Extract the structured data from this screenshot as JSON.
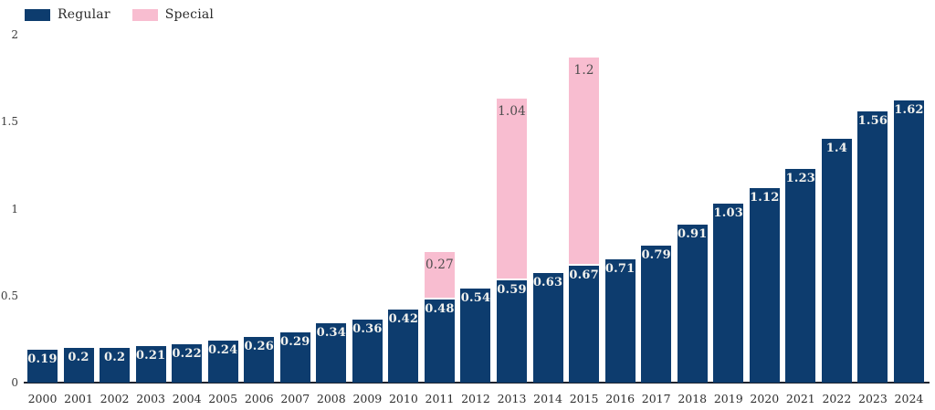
{
  "chart_data": {
    "type": "bar",
    "stacked": true,
    "title": "",
    "xlabel": "",
    "ylabel": "",
    "categories": [
      "2000",
      "2001",
      "2002",
      "2003",
      "2004",
      "2005",
      "2006",
      "2007",
      "2008",
      "2009",
      "2010",
      "2011",
      "2012",
      "2013",
      "2014",
      "2015",
      "2016",
      "2017",
      "2018",
      "2019",
      "2020",
      "2021",
      "2022",
      "2023",
      "2024"
    ],
    "series": [
      {
        "name": "Regular",
        "color": "#0d3c6e",
        "label_color": "#f2f2ee",
        "values": [
          0.19,
          0.2,
          0.2,
          0.21,
          0.22,
          0.24,
          0.26,
          0.29,
          0.34,
          0.36,
          0.42,
          0.48,
          0.54,
          0.59,
          0.63,
          0.67,
          0.71,
          0.79,
          0.91,
          1.03,
          1.12,
          1.23,
          1.4,
          1.56,
          1.62
        ]
      },
      {
        "name": "Special",
        "color": "#f8bdd0",
        "label_color": "#4d4d4d",
        "values": [
          0,
          0,
          0,
          0,
          0,
          0,
          0,
          0,
          0,
          0,
          0,
          0.27,
          0,
          1.04,
          0,
          1.2,
          0,
          0,
          0,
          0,
          0,
          0,
          0,
          0,
          0
        ]
      }
    ],
    "y_axis": {
      "min": 0,
      "max": 2,
      "ticks": [
        "0",
        "0.5",
        "1",
        "1.5",
        "2"
      ]
    },
    "legend": {
      "position": "top-left",
      "entries": [
        "Regular",
        "Special"
      ]
    },
    "grid": false,
    "bar_value_labels": true
  }
}
